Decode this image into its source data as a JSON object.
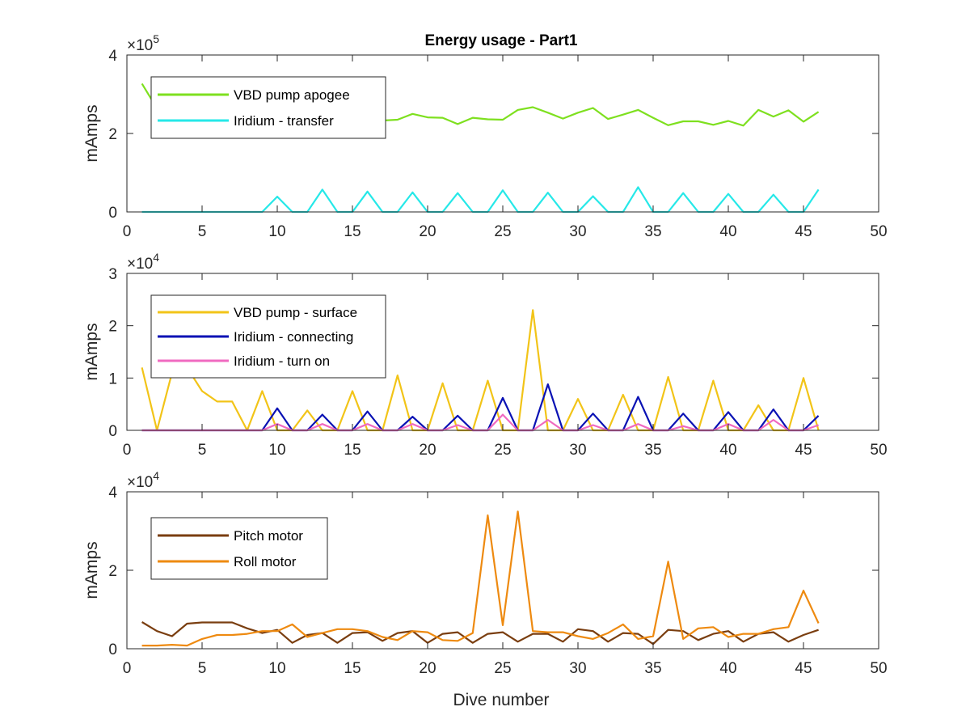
{
  "figure": {
    "title": "Energy usage - Part1",
    "xlabel": "Dive number"
  },
  "chart_data": [
    {
      "type": "line",
      "title": "Energy usage - Part1",
      "xlabel": "",
      "ylabel": "mAmps",
      "exponent_label": "×10",
      "exponent_power": "5",
      "y_scale": 100000,
      "xlim": [
        0,
        50
      ],
      "ylim": [
        0,
        4
      ],
      "xticks": [
        0,
        5,
        10,
        15,
        20,
        25,
        30,
        35,
        40,
        45,
        50
      ],
      "yticks": [
        0,
        2,
        4
      ],
      "grid": false,
      "legend_position": "top-left",
      "x": [
        1,
        2,
        3,
        4,
        5,
        6,
        7,
        8,
        9,
        10,
        11,
        12,
        13,
        14,
        15,
        16,
        17,
        18,
        19,
        20,
        21,
        22,
        23,
        24,
        25,
        26,
        27,
        28,
        29,
        30,
        31,
        32,
        33,
        34,
        35,
        36,
        37,
        38,
        39,
        40,
        41,
        42,
        43,
        44,
        45,
        46
      ],
      "series": [
        {
          "name": "VBD pump apogee",
          "color": "#7ee01f",
          "values": [
            3.27,
            2.64,
            2.58,
            2.62,
            2.52,
            2.45,
            2.41,
            2.38,
            2.36,
            2.4,
            2.45,
            2.48,
            2.38,
            2.33,
            2.4,
            2.45,
            2.33,
            2.35,
            2.5,
            2.41,
            2.4,
            2.24,
            2.4,
            2.36,
            2.35,
            2.6,
            2.67,
            2.53,
            2.38,
            2.53,
            2.65,
            2.37,
            2.48,
            2.6,
            2.4,
            2.21,
            2.31,
            2.31,
            2.22,
            2.32,
            2.2,
            2.6,
            2.43,
            2.59,
            2.3,
            2.55
          ]
        },
        {
          "name": "Iridium - transfer",
          "color": "#26e8e8",
          "values": [
            0,
            0,
            0,
            0,
            0,
            0,
            0,
            0,
            0,
            0.39,
            0,
            0,
            0.57,
            0,
            0,
            0.52,
            0,
            0,
            0.5,
            0,
            0,
            0.48,
            0,
            0,
            0.55,
            0,
            0,
            0.49,
            0,
            0,
            0.4,
            0,
            0,
            0.63,
            0,
            0,
            0.48,
            0,
            0,
            0.46,
            0,
            0,
            0.44,
            0,
            0,
            0.57
          ]
        }
      ]
    },
    {
      "type": "line",
      "xlabel": "",
      "ylabel": "mAmps",
      "exponent_label": "×10",
      "exponent_power": "4",
      "y_scale": 10000,
      "xlim": [
        0,
        50
      ],
      "ylim": [
        0,
        3
      ],
      "xticks": [
        0,
        5,
        10,
        15,
        20,
        25,
        30,
        35,
        40,
        45,
        50
      ],
      "yticks": [
        0,
        1,
        2,
        3
      ],
      "grid": false,
      "legend_position": "top-left",
      "x": [
        1,
        2,
        3,
        4,
        5,
        6,
        7,
        8,
        9,
        10,
        11,
        12,
        13,
        14,
        15,
        16,
        17,
        18,
        19,
        20,
        21,
        22,
        23,
        24,
        25,
        26,
        27,
        28,
        29,
        30,
        31,
        32,
        33,
        34,
        35,
        36,
        37,
        38,
        39,
        40,
        41,
        42,
        43,
        44,
        45,
        46
      ],
      "series": [
        {
          "name": "VBD pump - surface",
          "color": "#f2c418",
          "values": [
            1.2,
            0.0,
            1.1,
            1.2,
            0.75,
            0.55,
            0.55,
            0.0,
            0.75,
            0.0,
            0.0,
            0.38,
            0.0,
            0.0,
            0.75,
            0.0,
            0.0,
            1.05,
            0.0,
            0.0,
            0.9,
            0.0,
            0.0,
            0.95,
            0.0,
            0.0,
            2.3,
            0.0,
            0.0,
            0.6,
            0.0,
            0.0,
            0.68,
            0.0,
            0.0,
            1.02,
            0.0,
            0.0,
            0.95,
            0.0,
            0.0,
            0.48,
            0.0,
            0.0,
            1.0,
            0.0
          ]
        },
        {
          "name": "Iridium - connecting",
          "color": "#0a12b4",
          "values": [
            0,
            0,
            0,
            0,
            0,
            0,
            0,
            0,
            0,
            0.42,
            0,
            0,
            0.3,
            0,
            0,
            0.36,
            0,
            0,
            0.26,
            0,
            0,
            0.28,
            0,
            0,
            0.62,
            0,
            0,
            0.88,
            0,
            0,
            0.32,
            0,
            0,
            0.64,
            0,
            0,
            0.32,
            0,
            0,
            0.35,
            0,
            0,
            0.4,
            0,
            0,
            0.28
          ]
        },
        {
          "name": "Iridium - turn on",
          "color": "#f06ac0",
          "values": [
            0,
            0,
            0,
            0,
            0,
            0,
            0,
            0,
            0,
            0.12,
            0,
            0,
            0.12,
            0,
            0,
            0.12,
            0,
            0,
            0.12,
            0,
            0,
            0.1,
            0,
            0,
            0.3,
            0,
            0,
            0.2,
            0,
            0,
            0.1,
            0,
            0,
            0.12,
            0,
            0,
            0.08,
            0,
            0,
            0.12,
            0,
            0,
            0.2,
            0,
            0,
            0.1
          ]
        }
      ]
    },
    {
      "type": "line",
      "xlabel": "Dive number",
      "ylabel": "mAmps",
      "exponent_label": "×10",
      "exponent_power": "4",
      "y_scale": 10000,
      "xlim": [
        0,
        50
      ],
      "ylim": [
        0,
        4
      ],
      "xticks": [
        0,
        5,
        10,
        15,
        20,
        25,
        30,
        35,
        40,
        45,
        50
      ],
      "yticks": [
        0,
        2,
        4
      ],
      "grid": false,
      "legend_position": "top-left",
      "x": [
        1,
        2,
        3,
        4,
        5,
        6,
        7,
        8,
        9,
        10,
        11,
        12,
        13,
        14,
        15,
        16,
        17,
        18,
        19,
        20,
        21,
        22,
        23,
        24,
        25,
        26,
        27,
        28,
        29,
        30,
        31,
        32,
        33,
        34,
        35,
        36,
        37,
        38,
        39,
        40,
        41,
        42,
        43,
        44,
        45,
        46
      ],
      "series": [
        {
          "name": "Pitch motor",
          "color": "#7a3e10",
          "values": [
            0.68,
            0.45,
            0.32,
            0.64,
            0.67,
            0.67,
            0.67,
            0.52,
            0.4,
            0.48,
            0.15,
            0.35,
            0.4,
            0.15,
            0.4,
            0.42,
            0.2,
            0.4,
            0.45,
            0.15,
            0.38,
            0.42,
            0.15,
            0.38,
            0.42,
            0.18,
            0.38,
            0.38,
            0.18,
            0.5,
            0.45,
            0.18,
            0.4,
            0.38,
            0.12,
            0.48,
            0.45,
            0.22,
            0.38,
            0.45,
            0.18,
            0.38,
            0.42,
            0.18,
            0.35,
            0.48
          ]
        },
        {
          "name": "Roll motor",
          "color": "#ee8a10",
          "values": [
            0.08,
            0.08,
            0.1,
            0.08,
            0.25,
            0.35,
            0.35,
            0.38,
            0.45,
            0.45,
            0.62,
            0.3,
            0.4,
            0.5,
            0.5,
            0.45,
            0.3,
            0.22,
            0.45,
            0.42,
            0.22,
            0.2,
            0.4,
            3.4,
            0.6,
            3.5,
            0.45,
            0.42,
            0.42,
            0.32,
            0.25,
            0.4,
            0.62,
            0.25,
            0.32,
            2.22,
            0.25,
            0.52,
            0.55,
            0.3,
            0.38,
            0.38,
            0.5,
            0.55,
            1.48,
            0.65
          ]
        }
      ]
    }
  ]
}
